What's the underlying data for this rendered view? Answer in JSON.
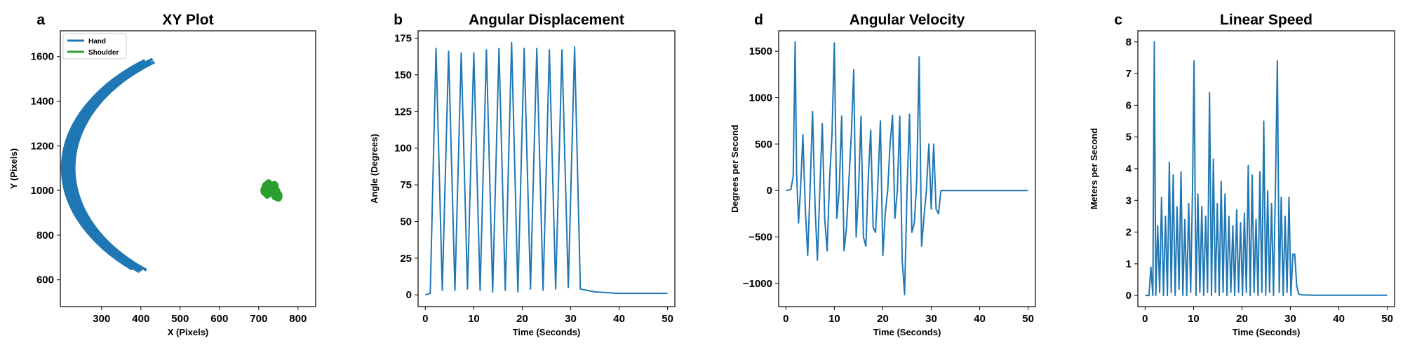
{
  "colors": {
    "hand": "#1f77b4",
    "shoulder": "#2ca02c",
    "line": "#1f77b4"
  },
  "chart_data": [
    {
      "panel_letter": "a",
      "type": "line",
      "title": "XY Plot",
      "xlabel": "X (Pixels)",
      "ylabel": "Y (Pixels)",
      "xlim": [
        195,
        845
      ],
      "ylim": [
        480,
        1715
      ],
      "xticks": [
        300,
        400,
        500,
        600,
        700,
        800
      ],
      "yticks": [
        600,
        800,
        1000,
        1200,
        1400,
        1600
      ],
      "grid": false,
      "legend": "top-left",
      "series": [
        {
          "name": "Hand",
          "path_shape": "c-arc",
          "center": [
            710,
            1100
          ],
          "rx_range": [
            480,
            510
          ],
          "ry_range": [
            580,
            600
          ],
          "angle_range_deg": [
            125,
            232
          ],
          "loops": 12
        },
        {
          "name": "Shoulder",
          "path_shape": "cluster",
          "center": [
            730,
            1000
          ],
          "spread": [
            18,
            22
          ]
        }
      ]
    },
    {
      "panel_letter": "b",
      "type": "line",
      "title": "Angular Displacement",
      "xlabel": "Time (Seconds)",
      "ylabel": "Angle (Degrees)",
      "xlim": [
        -1.5,
        51.5
      ],
      "ylim": [
        -8,
        180
      ],
      "xticks": [
        0,
        10,
        20,
        30,
        40,
        50
      ],
      "yticks": [
        0,
        25,
        50,
        75,
        100,
        125,
        150,
        175
      ],
      "grid": false,
      "legend": "none",
      "x": [
        0,
        1,
        2.2,
        3.5,
        4.8,
        6.1,
        7.4,
        8.7,
        10,
        11.3,
        12.6,
        13.9,
        15.2,
        16.5,
        17.8,
        19.1,
        20.4,
        21.7,
        23,
        24.3,
        25.6,
        26.9,
        28.2,
        29.5,
        30.8,
        32,
        35,
        40,
        45,
        50
      ],
      "y": [
        0,
        1,
        168,
        3,
        166,
        3,
        165,
        4,
        165,
        3,
        167,
        2,
        168,
        3,
        172,
        2,
        168,
        4,
        168,
        3,
        167,
        4,
        167,
        5,
        169,
        4,
        2,
        1,
        1,
        1
      ]
    },
    {
      "panel_letter": "d",
      "type": "line",
      "title": "Angular Velocity",
      "xlabel": "Time (Seconds)",
      "ylabel": "Degrees per Second",
      "xlim": [
        -1.5,
        51.5
      ],
      "ylim": [
        -1250,
        1720
      ],
      "xticks": [
        0,
        10,
        20,
        30,
        40,
        50
      ],
      "yticks": [
        -1000,
        -500,
        0,
        500,
        1000,
        1500
      ],
      "grid": false,
      "legend": "none",
      "x": [
        0,
        1,
        1.5,
        1.9,
        2.2,
        2.6,
        3,
        3.5,
        4,
        4.5,
        5,
        5.5,
        6,
        6.5,
        7,
        7.5,
        8,
        8.5,
        9,
        9.5,
        10,
        10.5,
        11,
        11.5,
        12,
        12.5,
        13,
        13.5,
        14,
        14.5,
        15,
        15.5,
        16,
        16.5,
        17,
        17.5,
        18,
        18.5,
        19,
        19.5,
        20,
        20.5,
        21,
        21.5,
        22,
        22.5,
        23,
        23.5,
        24,
        24.5,
        25,
        25.5,
        26,
        26.5,
        27,
        27.5,
        28,
        28.5,
        29,
        29.5,
        30,
        30.5,
        31,
        31.5,
        32,
        35,
        40,
        45,
        50
      ],
      "y": [
        0,
        10,
        150,
        1600,
        180,
        -350,
        0,
        600,
        -200,
        -700,
        50,
        850,
        -150,
        -750,
        0,
        720,
        -300,
        -650,
        100,
        600,
        1590,
        -300,
        0,
        800,
        -650,
        -400,
        100,
        600,
        1300,
        -500,
        0,
        800,
        -500,
        -600,
        150,
        650,
        -400,
        -450,
        100,
        750,
        -700,
        -250,
        0,
        500,
        810,
        -300,
        0,
        800,
        -750,
        -1120,
        0,
        820,
        -450,
        -350,
        100,
        1440,
        -600,
        -280,
        0,
        500,
        -200,
        500,
        -200,
        -250,
        0,
        0,
        0,
        0,
        0
      ]
    },
    {
      "panel_letter": "c",
      "type": "line",
      "title": "Linear Speed",
      "xlabel": "Time (Seconds)",
      "ylabel": "Meters per Second",
      "xlim": [
        -1.5,
        51.5
      ],
      "ylim": [
        -0.35,
        8.35
      ],
      "xticks": [
        0,
        10,
        20,
        30,
        40,
        50
      ],
      "yticks": [
        0,
        1,
        2,
        3,
        4,
        5,
        6,
        7,
        8
      ],
      "grid": false,
      "legend": "none",
      "x": [
        0,
        0.8,
        1.2,
        1.6,
        1.9,
        2.2,
        2.6,
        3,
        3.4,
        3.8,
        4.2,
        4.6,
        5,
        5.4,
        5.8,
        6.2,
        6.6,
        7,
        7.4,
        7.8,
        8.2,
        8.6,
        9,
        9.4,
        9.8,
        10.1,
        10.5,
        10.9,
        11.3,
        11.7,
        12.1,
        12.5,
        12.9,
        13.3,
        13.7,
        14.1,
        14.5,
        14.9,
        15.3,
        15.7,
        16.1,
        16.5,
        16.9,
        17.3,
        17.7,
        18.1,
        18.5,
        18.9,
        19.3,
        19.7,
        20.1,
        20.5,
        20.9,
        21.3,
        21.7,
        22.1,
        22.5,
        22.9,
        23.3,
        23.7,
        24.1,
        24.5,
        24.9,
        25.3,
        25.7,
        26.1,
        26.5,
        26.9,
        27.3,
        27.7,
        28.1,
        28.5,
        28.9,
        29.3,
        29.7,
        30.1,
        30.5,
        30.9,
        31.3,
        31.7,
        32.2,
        35,
        40,
        45,
        50
      ],
      "y": [
        0,
        0,
        0.9,
        0,
        8,
        0,
        2.2,
        0.1,
        3.1,
        0,
        2.5,
        0,
        4.2,
        0.1,
        3.8,
        0,
        2.8,
        0.2,
        3.9,
        0,
        2.4,
        0,
        2.9,
        0.1,
        3.4,
        7.4,
        0,
        3.2,
        0.1,
        2.8,
        0,
        2.5,
        0.1,
        6.4,
        0,
        4.3,
        0.1,
        2.9,
        0,
        3.6,
        0.1,
        3.2,
        0,
        2.5,
        0.1,
        2.2,
        0,
        2.7,
        0.1,
        2.3,
        0,
        2.6,
        0.1,
        4.1,
        0,
        3.8,
        0.1,
        2.4,
        0,
        3.9,
        0.1,
        5.5,
        0,
        3.3,
        0.1,
        2.9,
        0,
        3.3,
        7.4,
        0.1,
        3.1,
        0,
        2.5,
        0.1,
        3.1,
        0,
        1.3,
        1.3,
        0.3,
        0.05,
        0.02,
        0.01,
        0.01,
        0.01,
        0.01
      ]
    }
  ]
}
